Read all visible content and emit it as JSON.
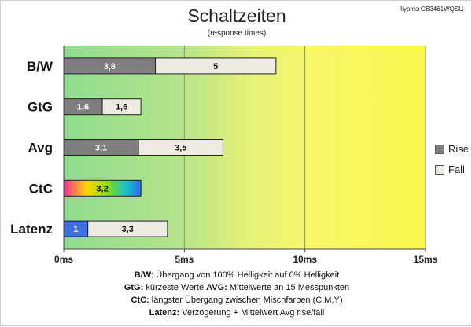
{
  "chart_data": {
    "type": "bar",
    "stacked": true,
    "orientation": "horizontal",
    "title": "Schaltzeiten",
    "subtitle": "(response times)",
    "model": "Iiyama GB3461WQSU",
    "categories": [
      "B/W",
      "GtG",
      "Avg",
      "CtC",
      "Latenz"
    ],
    "series": [
      {
        "name": "Rise",
        "values": [
          3.8,
          1.6,
          3.1,
          3.2,
          1
        ],
        "color": "#7f7f7f"
      },
      {
        "name": "Fall",
        "values": [
          5,
          1.6,
          3.5,
          null,
          3.3
        ],
        "color": "#eeebe2"
      }
    ],
    "value_labels": {
      "Rise": [
        "3,8",
        "1,6",
        "3,1",
        "3,2",
        "1"
      ],
      "Fall": [
        "5",
        "1,6",
        "3,5",
        "",
        "3,3"
      ]
    },
    "special_fills": {
      "CtC": "rainbow-gradient",
      "Latenz": "#3f6fe6"
    },
    "xlim": [
      0,
      15
    ],
    "xticks": [
      0,
      5,
      10,
      15
    ],
    "xtick_labels": [
      "0ms",
      "5ms",
      "10ms",
      "15ms"
    ],
    "background_zones": [
      "green (0-5ms)",
      "yellow-green (5-10ms)",
      "yellow (10-15ms)"
    ],
    "legend_position": "right",
    "grid": "vertical lines at major ticks"
  },
  "notes": [
    {
      "parts": [
        {
          "b": "B/W"
        },
        {
          "t": ":  Übergang von 100% Helligkeit auf 0% Helligkeit"
        }
      ]
    },
    {
      "parts": [
        {
          "b": "GtG:"
        },
        {
          "t": " kürzeste  Werte        "
        },
        {
          "b": "AVG:"
        },
        {
          "t": " Mittelwerte  an 15 Messpunkten"
        }
      ]
    },
    {
      "parts": [
        {
          "b": "CtC:"
        },
        {
          "t": " längster Übergang  zwischen Mischfarben  (C,M,Y)"
        }
      ]
    },
    {
      "parts": [
        {
          "b": "Latenz:"
        },
        {
          "t": " Verzögerung  + Mittelwert  Avg rise/fall"
        }
      ]
    }
  ]
}
